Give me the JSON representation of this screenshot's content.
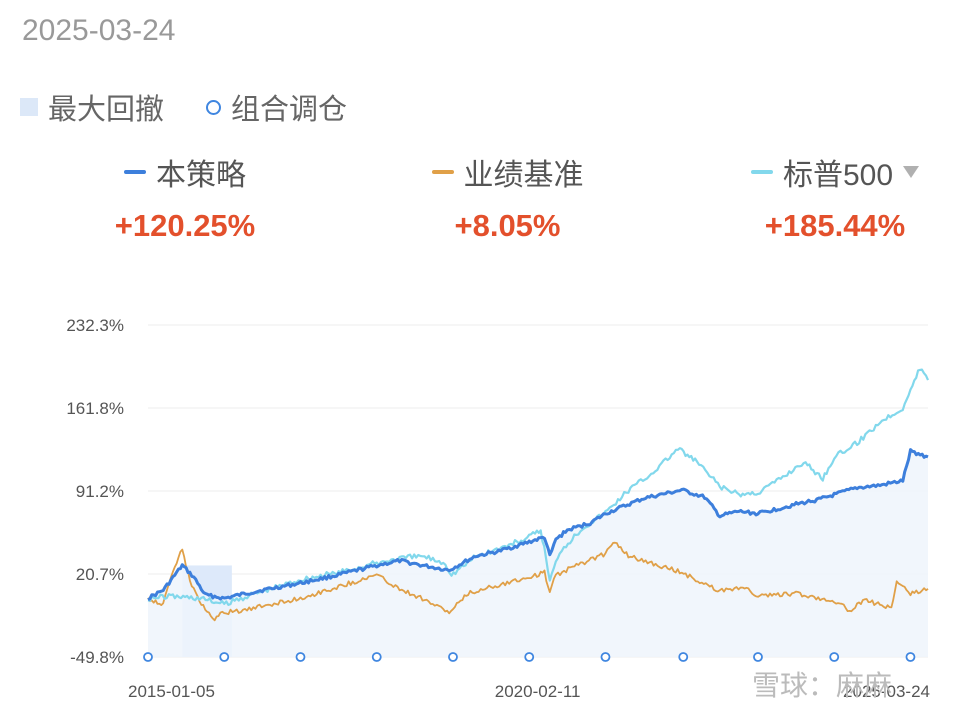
{
  "date": "2025-03-24",
  "legend": {
    "drawdown_label": "最大回撤",
    "rebalance_label": "组合调仓"
  },
  "series_header": [
    {
      "name": "本策略",
      "value": "+120.25%",
      "color": "#3d7fdc"
    },
    {
      "name": "业绩基准",
      "value": "+8.05%",
      "color": "#e0a048"
    },
    {
      "name": "标普500",
      "value": "+185.44%",
      "color": "#82d8ec"
    }
  ],
  "watermark": "雪球：麻麻",
  "chart_data": {
    "type": "line",
    "title": "",
    "y_ticks": [
      "232.3%",
      "161.8%",
      "91.2%",
      "20.7%",
      "-49.8%"
    ],
    "x_ticks": [
      "2015-01-05",
      "2020-02-11",
      "2025-03-24"
    ],
    "ylim": [
      -49.8,
      232.3
    ],
    "xlim": [
      2015.0,
      2025.23
    ],
    "grid": true,
    "series": [
      {
        "name": "本策略",
        "color": "#3d7fdc",
        "x": [
          2015.0,
          2015.2,
          2015.45,
          2015.6,
          2015.75,
          2016.0,
          2016.2,
          2016.5,
          2017.0,
          2017.5,
          2018.0,
          2018.3,
          2018.6,
          2018.95,
          2019.3,
          2019.6,
          2020.0,
          2020.2,
          2020.27,
          2020.35,
          2020.5,
          2020.8,
          2021.0,
          2021.5,
          2022.0,
          2022.3,
          2022.5,
          2022.75,
          2023.0,
          2023.5,
          2023.8,
          2024.0,
          2024.3,
          2024.6,
          2024.9,
          2025.0,
          2025.23
        ],
        "values": [
          0.0,
          7.0,
          28.0,
          18.0,
          3.0,
          0.0,
          3.0,
          7.0,
          13.0,
          20.0,
          28.0,
          32.0,
          28.0,
          24.0,
          36.0,
          40.0,
          48.0,
          52.0,
          36.0,
          50.0,
          58.0,
          64.0,
          72.0,
          85.0,
          92.0,
          86.0,
          70.0,
          74.0,
          72.0,
          80.0,
          84.0,
          88.0,
          94.0,
          96.0,
          100.0,
          125.0,
          120.25
        ]
      },
      {
        "name": "业绩基准",
        "color": "#e0a048",
        "x": [
          2015.0,
          2015.2,
          2015.35,
          2015.45,
          2015.55,
          2015.7,
          2015.85,
          2016.0,
          2016.3,
          2016.6,
          2017.0,
          2017.5,
          2018.0,
          2018.3,
          2018.6,
          2018.95,
          2019.2,
          2019.5,
          2020.0,
          2020.2,
          2020.27,
          2020.35,
          2020.7,
          2021.0,
          2021.1,
          2021.3,
          2021.5,
          2022.0,
          2022.5,
          2022.8,
          2023.0,
          2023.5,
          2024.0,
          2024.2,
          2024.4,
          2024.6,
          2024.75,
          2024.82,
          2025.0,
          2025.23
        ],
        "values": [
          0.0,
          -5.0,
          28.0,
          41.0,
          15.0,
          -5.0,
          -18.0,
          -12.0,
          -10.0,
          -5.0,
          0.0,
          10.0,
          20.0,
          8.0,
          0.0,
          -12.0,
          4.0,
          10.0,
          18.0,
          22.0,
          5.0,
          20.0,
          30.0,
          38.0,
          49.0,
          36.0,
          32.0,
          22.0,
          6.0,
          10.0,
          2.0,
          4.0,
          -2.0,
          -10.0,
          -2.0,
          -5.0,
          -8.0,
          14.0,
          4.0,
          8.05
        ]
      },
      {
        "name": "标普500",
        "color": "#82d8ec",
        "x": [
          2015.0,
          2015.3,
          2015.7,
          2016.0,
          2016.3,
          2016.7,
          2017.0,
          2017.5,
          2018.0,
          2018.3,
          2018.6,
          2018.9,
          2018.98,
          2019.3,
          2019.6,
          2020.0,
          2020.15,
          2020.22,
          2020.27,
          2020.4,
          2020.7,
          2021.0,
          2021.3,
          2021.6,
          2021.95,
          2022.2,
          2022.5,
          2022.75,
          2023.0,
          2023.3,
          2023.6,
          2023.85,
          2024.0,
          2024.3,
          2024.6,
          2024.9,
          2025.1,
          2025.15,
          2025.23
        ],
        "values": [
          0.0,
          2.0,
          0.0,
          -5.0,
          2.0,
          10.0,
          16.0,
          22.0,
          30.0,
          34.0,
          36.0,
          30.0,
          20.0,
          36.0,
          42.0,
          52.0,
          58.0,
          35.0,
          15.0,
          40.0,
          60.0,
          73.0,
          92.0,
          106.0,
          127.0,
          116.0,
          95.0,
          88.0,
          90.0,
          102.0,
          116.0,
          102.0,
          120.0,
          132.0,
          150.0,
          162.0,
          192.0,
          196.0,
          185.44
        ]
      }
    ],
    "drawdown_x_range": [
      2015.45,
      2016.1
    ],
    "rebalance_dates_x": [
      2015.0,
      2016.0,
      2017.0,
      2018.0,
      2019.0,
      2020.0,
      2021.0,
      2022.02,
      2023.0,
      2024.0,
      2025.0
    ]
  }
}
